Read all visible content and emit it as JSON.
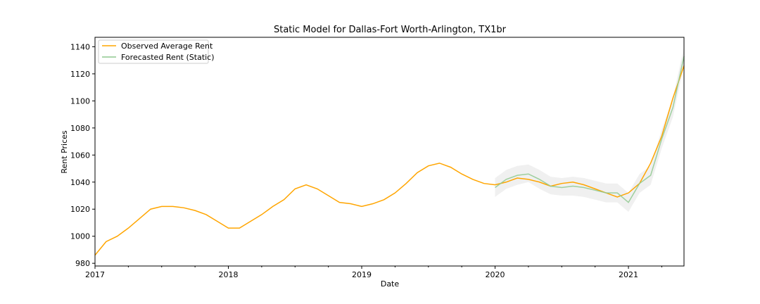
{
  "chart_data": {
    "type": "line",
    "title": "Static Model for Dallas-Fort Worth-Arlington, TX1br",
    "xlabel": "Date",
    "ylabel": "Rent Prices",
    "xlim": [
      "2017-01",
      "2021-06"
    ],
    "ylim": [
      978,
      1147
    ],
    "x_ticks": [
      "2017",
      "2018",
      "2019",
      "2020",
      "2021"
    ],
    "y_ticks": [
      980,
      1000,
      1020,
      1040,
      1060,
      1080,
      1100,
      1120,
      1140
    ],
    "grid": false,
    "legend_position": "upper-left",
    "series": [
      {
        "name": "Observed Average Rent",
        "color": "#FFA500",
        "x": [
          "2017-01",
          "2017-02",
          "2017-03",
          "2017-04",
          "2017-05",
          "2017-06",
          "2017-07",
          "2017-08",
          "2017-09",
          "2017-10",
          "2017-11",
          "2017-12",
          "2018-01",
          "2018-02",
          "2018-03",
          "2018-04",
          "2018-05",
          "2018-06",
          "2018-07",
          "2018-08",
          "2018-09",
          "2018-10",
          "2018-11",
          "2018-12",
          "2019-01",
          "2019-02",
          "2019-03",
          "2019-04",
          "2019-05",
          "2019-06",
          "2019-07",
          "2019-08",
          "2019-09",
          "2019-10",
          "2019-11",
          "2019-12",
          "2020-01",
          "2020-02",
          "2020-03",
          "2020-04",
          "2020-05",
          "2020-06",
          "2020-07",
          "2020-08",
          "2020-09",
          "2020-10",
          "2020-11",
          "2020-12",
          "2021-01",
          "2021-02",
          "2021-03",
          "2021-04",
          "2021-05",
          "2021-06"
        ],
        "values": [
          986,
          996,
          1000,
          1006,
          1013,
          1020,
          1022,
          1022,
          1021,
          1019,
          1016,
          1011,
          1006,
          1006,
          1011,
          1016,
          1022,
          1027,
          1035,
          1038,
          1035,
          1030,
          1025,
          1024,
          1022,
          1024,
          1027,
          1032,
          1039,
          1047,
          1052,
          1054,
          1051,
          1046,
          1042,
          1039,
          1038,
          1040,
          1043,
          1042,
          1040,
          1037,
          1039,
          1040,
          1038,
          1035,
          1032,
          1029,
          1032,
          1039,
          1054,
          1074,
          1102,
          1126
        ]
      },
      {
        "name": "Forecasted Rent (Static)",
        "color": "#8FC98F",
        "x": [
          "2020-01",
          "2020-02",
          "2020-03",
          "2020-04",
          "2020-05",
          "2020-06",
          "2020-07",
          "2020-08",
          "2020-09",
          "2020-10",
          "2020-11",
          "2020-12",
          "2021-01",
          "2021-02",
          "2021-03",
          "2021-04",
          "2021-05",
          "2021-06"
        ],
        "values": [
          1036,
          1042,
          1045,
          1046,
          1042,
          1037,
          1036,
          1037,
          1036,
          1034,
          1032,
          1032,
          1025,
          1039,
          1045,
          1072,
          1095,
          1133
        ],
        "ci_lower": [
          1029,
          1035,
          1038,
          1040,
          1035,
          1031,
          1030,
          1030,
          1029,
          1027,
          1025,
          1025,
          1018,
          1032,
          1038,
          1065,
          1088,
          1126
        ],
        "ci_upper": [
          1043,
          1049,
          1052,
          1053,
          1049,
          1044,
          1043,
          1044,
          1043,
          1041,
          1039,
          1039,
          1032,
          1046,
          1052,
          1079,
          1102,
          1140
        ]
      }
    ]
  }
}
